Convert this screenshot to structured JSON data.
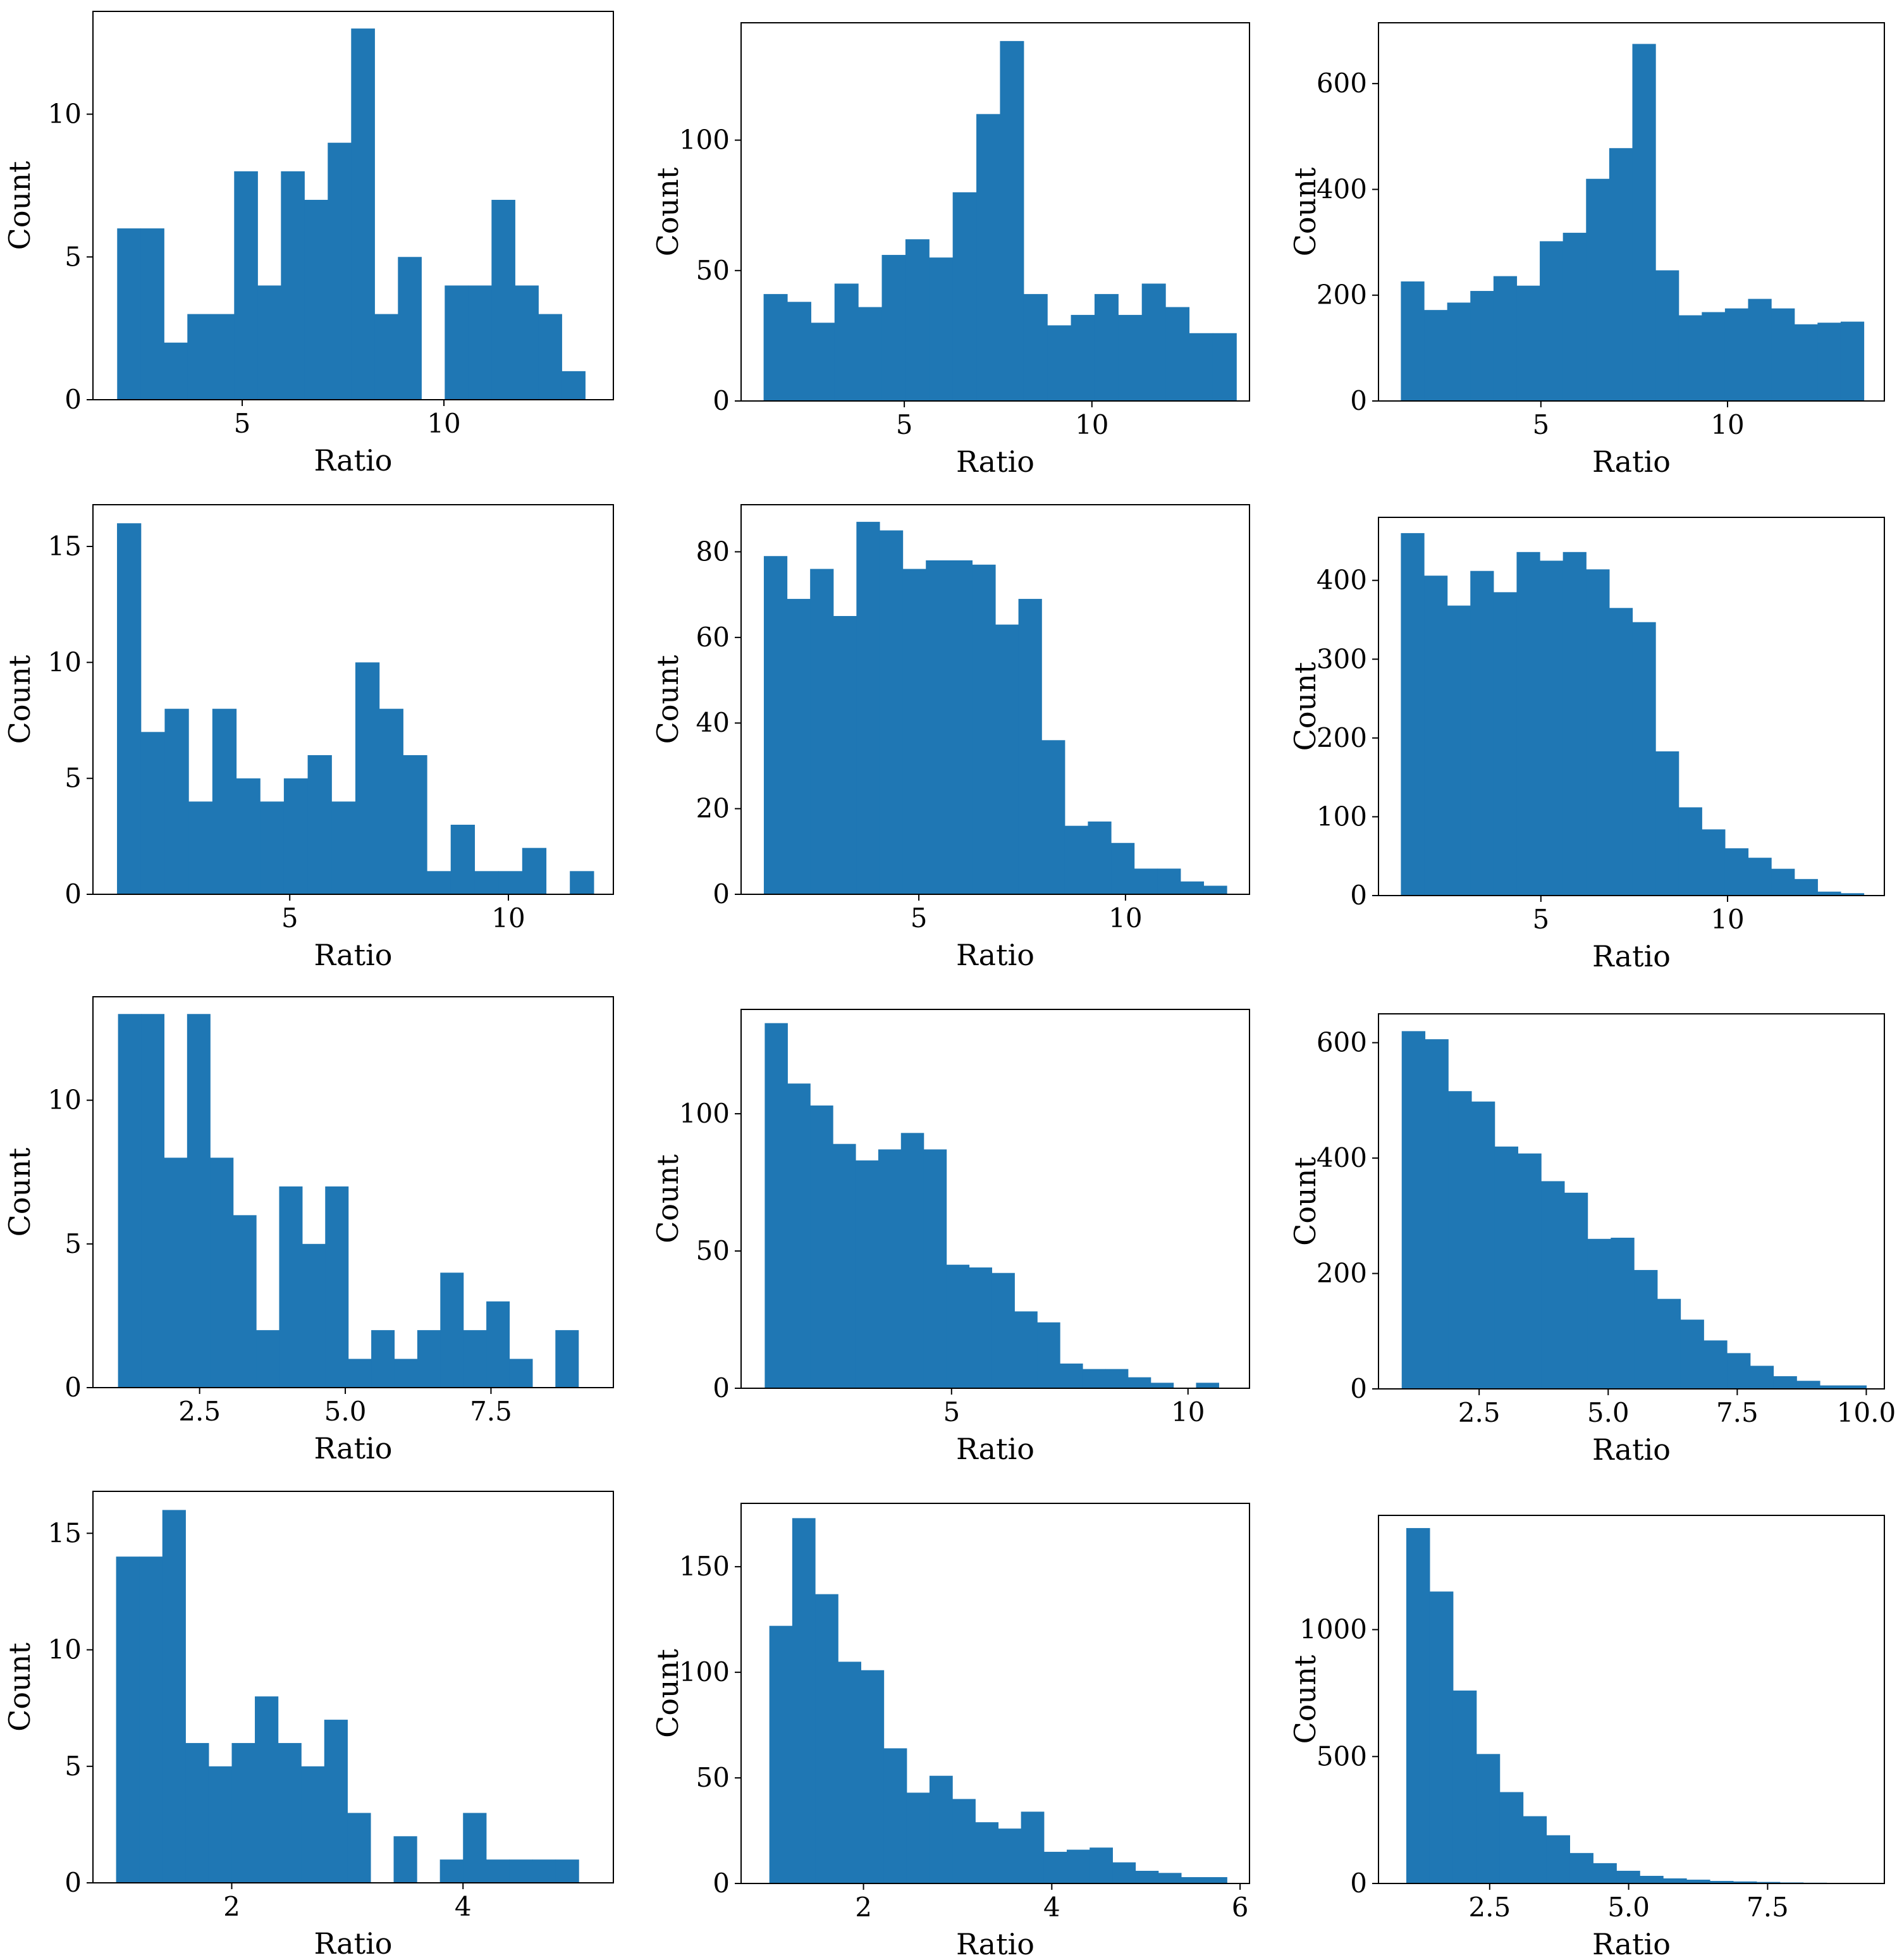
{
  "colors": {
    "bar": "#1f77b4",
    "axis": "#000000",
    "background": "#ffffff"
  },
  "chart_data": [
    {
      "type": "bar",
      "title": "",
      "xlabel": "Ratio",
      "ylabel": "Count",
      "xlim": [
        1.3,
        14.2
      ],
      "ylim": [
        0,
        13.6
      ],
      "xticks": [
        {
          "v": 5,
          "t": "5"
        },
        {
          "v": 10,
          "t": "10"
        }
      ],
      "yticks": [
        {
          "v": 0,
          "t": "0"
        },
        {
          "v": 5,
          "t": "5"
        },
        {
          "v": 10,
          "t": "10"
        }
      ],
      "bin_start": 1.9,
      "bin_width": 0.58,
      "values": [
        6,
        6,
        2,
        3,
        3,
        8,
        4,
        8,
        7,
        9,
        13,
        3,
        5,
        0,
        4,
        4,
        7,
        4,
        3,
        1
      ]
    },
    {
      "type": "bar",
      "title": "",
      "xlabel": "Ratio",
      "ylabel": "Count",
      "xlim": [
        0.65,
        14.2
      ],
      "ylim": [
        0,
        145
      ],
      "xticks": [
        {
          "v": 5,
          "t": "5"
        },
        {
          "v": 10,
          "t": "10"
        }
      ],
      "yticks": [
        {
          "v": 0,
          "t": "0"
        },
        {
          "v": 50,
          "t": "50"
        },
        {
          "v": 100,
          "t": "100"
        }
      ],
      "bin_start": 1.25,
      "bin_width": 0.63,
      "values": [
        41,
        38,
        30,
        45,
        36,
        56,
        62,
        55,
        80,
        110,
        138,
        41,
        29,
        33,
        41,
        33,
        45,
        36,
        26,
        26
      ]
    },
    {
      "type": "bar",
      "title": "",
      "xlabel": "Ratio",
      "ylabel": "Count",
      "xlim": [
        0.65,
        14.2
      ],
      "ylim": [
        0,
        715
      ],
      "xticks": [
        {
          "v": 5,
          "t": "5"
        },
        {
          "v": 10,
          "t": "10"
        }
      ],
      "yticks": [
        {
          "v": 0,
          "t": "0"
        },
        {
          "v": 200,
          "t": "200"
        },
        {
          "v": 400,
          "t": "400"
        },
        {
          "v": 600,
          "t": "600"
        }
      ],
      "bin_start": 1.25,
      "bin_width": 0.62,
      "values": [
        226,
        172,
        186,
        208,
        236,
        218,
        302,
        318,
        420,
        478,
        675,
        247,
        162,
        168,
        175,
        193,
        175,
        145,
        148,
        150
      ]
    },
    {
      "type": "bar",
      "title": "",
      "xlabel": "Ratio",
      "ylabel": "Count",
      "xlim": [
        0.5,
        12.4
      ],
      "ylim": [
        0,
        16.8
      ],
      "xticks": [
        {
          "v": 5,
          "t": "5"
        },
        {
          "v": 10,
          "t": "10"
        }
      ],
      "yticks": [
        {
          "v": 0,
          "t": "0"
        },
        {
          "v": 5,
          "t": "5"
        },
        {
          "v": 10,
          "t": "10"
        },
        {
          "v": 15,
          "t": "15"
        }
      ],
      "bin_start": 1.05,
      "bin_width": 0.545,
      "values": [
        16,
        7,
        8,
        4,
        8,
        5,
        4,
        5,
        6,
        4,
        10,
        8,
        6,
        1,
        3,
        1,
        1,
        2,
        0,
        1
      ]
    },
    {
      "type": "bar",
      "title": "",
      "xlabel": "Ratio",
      "ylabel": "Count",
      "xlim": [
        0.7,
        13.0
      ],
      "ylim": [
        0,
        91
      ],
      "xticks": [
        {
          "v": 5,
          "t": "5"
        },
        {
          "v": 10,
          "t": "10"
        }
      ],
      "yticks": [
        {
          "v": 0,
          "t": "0"
        },
        {
          "v": 20,
          "t": "20"
        },
        {
          "v": 40,
          "t": "40"
        },
        {
          "v": 60,
          "t": "60"
        },
        {
          "v": 80,
          "t": "80"
        }
      ],
      "bin_start": 1.25,
      "bin_width": 0.56,
      "values": [
        79,
        69,
        76,
        65,
        87,
        85,
        76,
        78,
        78,
        77,
        63,
        69,
        36,
        16,
        17,
        12,
        6,
        6,
        3,
        2
      ]
    },
    {
      "type": "bar",
      "title": "",
      "xlabel": "Ratio",
      "ylabel": "Count",
      "xlim": [
        0.65,
        14.2
      ],
      "ylim": [
        0,
        480
      ],
      "xticks": [
        {
          "v": 5,
          "t": "5"
        },
        {
          "v": 10,
          "t": "10"
        }
      ],
      "yticks": [
        {
          "v": 0,
          "t": "0"
        },
        {
          "v": 100,
          "t": "100"
        },
        {
          "v": 200,
          "t": "200"
        },
        {
          "v": 300,
          "t": "300"
        },
        {
          "v": 400,
          "t": "400"
        }
      ],
      "bin_start": 1.25,
      "bin_width": 0.62,
      "values": [
        460,
        406,
        368,
        412,
        385,
        436,
        425,
        436,
        414,
        365,
        347,
        183,
        112,
        84,
        60,
        48,
        34,
        21,
        5,
        3
      ]
    },
    {
      "type": "bar",
      "title": "",
      "xlabel": "Ratio",
      "ylabel": "Count",
      "xlim": [
        0.67,
        9.6
      ],
      "ylim": [
        0,
        13.6
      ],
      "xticks": [
        {
          "v": 2.5,
          "t": "2.5"
        },
        {
          "v": 5,
          "t": "5.0"
        },
        {
          "v": 7.5,
          "t": "7.5"
        }
      ],
      "yticks": [
        {
          "v": 0,
          "t": "0"
        },
        {
          "v": 5,
          "t": "5"
        },
        {
          "v": 10,
          "t": "10"
        }
      ],
      "bin_start": 1.1,
      "bin_width": 0.395,
      "values": [
        13,
        13,
        8,
        13,
        8,
        6,
        2,
        7,
        5,
        7,
        1,
        2,
        1,
        2,
        4,
        2,
        3,
        1,
        0,
        2
      ]
    },
    {
      "type": "bar",
      "title": "",
      "xlabel": "Ratio",
      "ylabel": "Count",
      "xlim": [
        0.55,
        11.3
      ],
      "ylim": [
        0,
        138
      ],
      "xticks": [
        {
          "v": 5,
          "t": "5"
        },
        {
          "v": 10,
          "t": "10"
        }
      ],
      "yticks": [
        {
          "v": 0,
          "t": "0"
        },
        {
          "v": 50,
          "t": "50"
        },
        {
          "v": 100,
          "t": "100"
        }
      ],
      "bin_start": 1.05,
      "bin_width": 0.48,
      "values": [
        133,
        111,
        103,
        89,
        83,
        87,
        93,
        87,
        45,
        44,
        42,
        28,
        24,
        9,
        7,
        7,
        4,
        2,
        0,
        2
      ]
    },
    {
      "type": "bar",
      "title": "",
      "xlabel": "Ratio",
      "ylabel": "Count",
      "xlim": [
        0.55,
        10.35
      ],
      "ylim": [
        0,
        650
      ],
      "xticks": [
        {
          "v": 2.5,
          "t": "2.5"
        },
        {
          "v": 5,
          "t": "5.0"
        },
        {
          "v": 7.5,
          "t": "7.5"
        },
        {
          "v": 10,
          "t": "10.0"
        }
      ],
      "yticks": [
        {
          "v": 0,
          "t": "0"
        },
        {
          "v": 200,
          "t": "200"
        },
        {
          "v": 400,
          "t": "400"
        },
        {
          "v": 600,
          "t": "600"
        }
      ],
      "bin_start": 1.0,
      "bin_width": 0.45,
      "values": [
        620,
        606,
        516,
        498,
        420,
        408,
        360,
        340,
        260,
        262,
        206,
        156,
        120,
        84,
        62,
        40,
        22,
        14,
        6,
        6
      ]
    },
    {
      "type": "bar",
      "title": "",
      "xlabel": "Ratio",
      "ylabel": "Count",
      "xlim": [
        0.8,
        5.3
      ],
      "ylim": [
        0,
        16.8
      ],
      "xticks": [
        {
          "v": 2,
          "t": "2"
        },
        {
          "v": 4,
          "t": "4"
        }
      ],
      "yticks": [
        {
          "v": 0,
          "t": "0"
        },
        {
          "v": 5,
          "t": "5"
        },
        {
          "v": 10,
          "t": "10"
        },
        {
          "v": 15,
          "t": "15"
        }
      ],
      "bin_start": 1.0,
      "bin_width": 0.2,
      "values": [
        14,
        14,
        16,
        6,
        5,
        6,
        8,
        6,
        5,
        7,
        3,
        0,
        2,
        0,
        1,
        3,
        1,
        1,
        1,
        1
      ]
    },
    {
      "type": "bar",
      "title": "",
      "xlabel": "Ratio",
      "ylabel": "Count",
      "xlim": [
        0.7,
        6.1
      ],
      "ylim": [
        0,
        180
      ],
      "xticks": [
        {
          "v": 2,
          "t": "2"
        },
        {
          "v": 4,
          "t": "4"
        },
        {
          "v": 6,
          "t": "6"
        }
      ],
      "yticks": [
        {
          "v": 0,
          "t": "0"
        },
        {
          "v": 50,
          "t": "50"
        },
        {
          "v": 100,
          "t": "100"
        },
        {
          "v": 150,
          "t": "150"
        }
      ],
      "bin_start": 1.0,
      "bin_width": 0.243,
      "values": [
        122,
        173,
        137,
        105,
        101,
        64,
        43,
        51,
        40,
        29,
        26,
        34,
        15,
        16,
        17,
        10,
        6,
        5,
        3,
        3
      ]
    },
    {
      "type": "bar",
      "title": "",
      "xlabel": "Ratio",
      "ylabel": "Count",
      "xlim": [
        0.5,
        9.6
      ],
      "ylim": [
        0,
        1450
      ],
      "xticks": [
        {
          "v": 2.5,
          "t": "2.5"
        },
        {
          "v": 5,
          "t": "5.0"
        },
        {
          "v": 7.5,
          "t": "7.5"
        }
      ],
      "yticks": [
        {
          "v": 0,
          "t": "0"
        },
        {
          "v": 500,
          "t": "500"
        },
        {
          "v": 1000,
          "t": "1000"
        }
      ],
      "bin_start": 1.0,
      "bin_width": 0.42,
      "values": [
        1400,
        1150,
        760,
        510,
        360,
        265,
        190,
        120,
        80,
        50,
        30,
        20,
        15,
        10,
        8,
        6,
        4,
        3,
        2,
        2
      ]
    }
  ]
}
